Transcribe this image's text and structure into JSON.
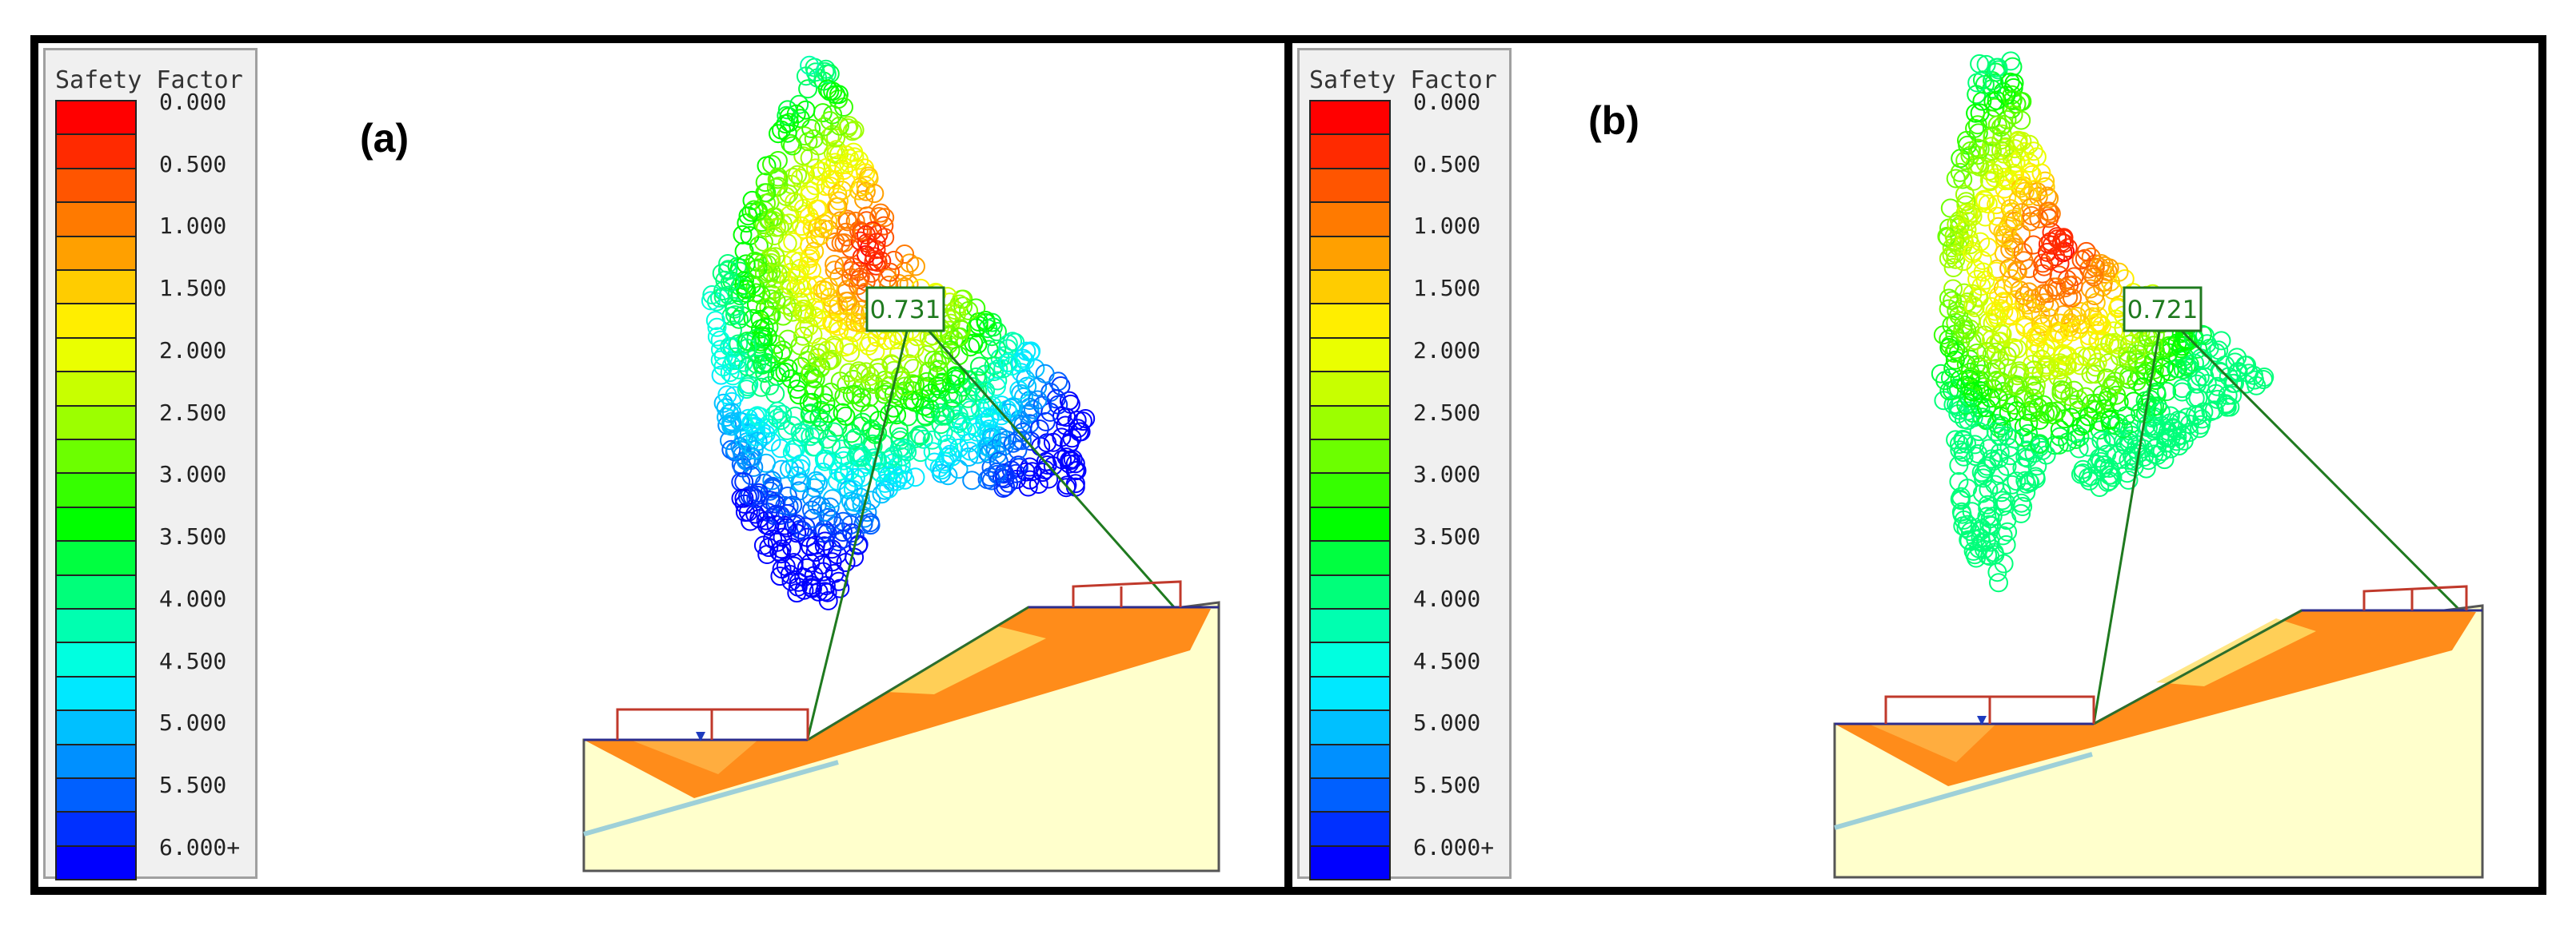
{
  "legend": {
    "title": "Safety Factor",
    "labels": [
      "0.000",
      "0.500",
      "1.000",
      "1.500",
      "2.000",
      "2.500",
      "3.000",
      "3.500",
      "4.000",
      "4.500",
      "5.000",
      "5.500",
      "6.000+"
    ],
    "colors": [
      "#ff0000",
      "#ff2a00",
      "#ff5500",
      "#ff7a00",
      "#ffa000",
      "#ffcc00",
      "#ffee00",
      "#eaff00",
      "#c8ff00",
      "#9cff00",
      "#6cff00",
      "#36ff00",
      "#00ff00",
      "#00ff40",
      "#00ff7a",
      "#00ffb0",
      "#00ffe0",
      "#00e8ff",
      "#00c0ff",
      "#0090ff",
      "#0060ff",
      "#0030ff",
      "#0000ff"
    ]
  },
  "panels": [
    {
      "tag": "(a)",
      "min_factor": "0.731"
    },
    {
      "tag": "(b)",
      "min_factor": "0.721"
    }
  ],
  "colors": {
    "ground": "#ffffcc",
    "slip_zone": "#ff8c1a",
    "load": "#c0392b",
    "leader": "#1f7a1f",
    "water": "#9ed0d8"
  }
}
